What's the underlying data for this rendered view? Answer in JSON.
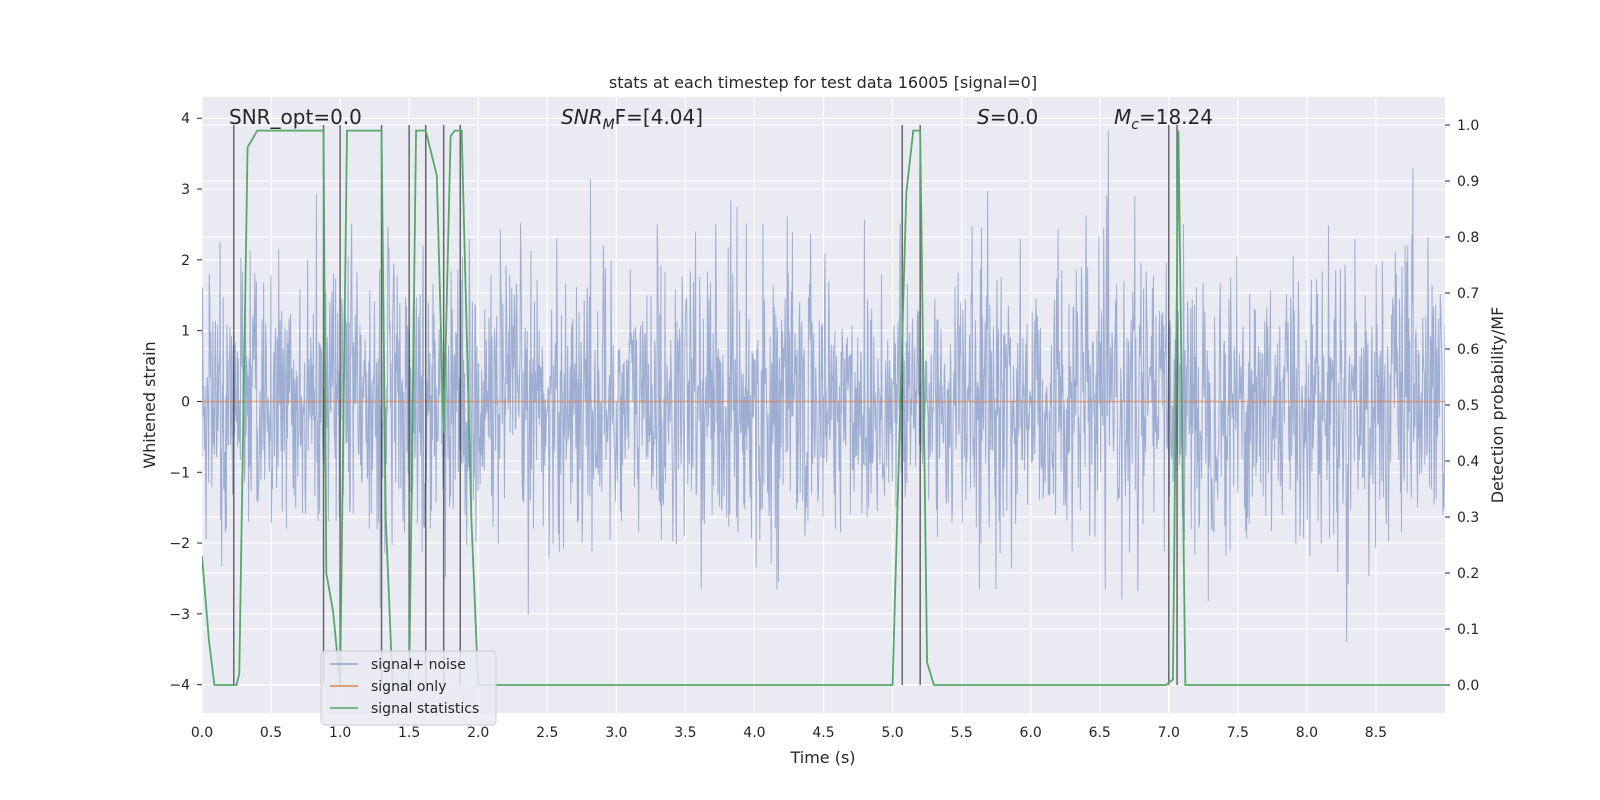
{
  "chart_data": {
    "type": "line",
    "title": "stats at each timestep for test data 16005 [signal=0]",
    "xlabel": "Time (s)",
    "ylabel_left": "Whitened strain",
    "ylabel_right": "Detection probability/MF",
    "xlim": [
      0.0,
      9.0
    ],
    "ylim_left": [
      -4.4,
      4.3
    ],
    "ylim_right": [
      -0.05,
      1.05
    ],
    "xticks": [
      "0.0",
      "0.5",
      "1.0",
      "1.5",
      "2.0",
      "2.5",
      "3.0",
      "3.5",
      "4.0",
      "4.5",
      "5.0",
      "5.5",
      "6.0",
      "6.5",
      "7.0",
      "7.5",
      "8.0",
      "8.5"
    ],
    "yticks_left": [
      "4",
      "3",
      "2",
      "1",
      "0",
      "−1",
      "−2",
      "−3",
      "−4"
    ],
    "yticks_right": [
      "1.0",
      "0.9",
      "0.8",
      "0.7",
      "0.6",
      "0.5",
      "0.4",
      "0.3",
      "0.2",
      "0.1",
      "0.0"
    ],
    "annotations": {
      "snr_opt": "SNR_opt=0.0",
      "snr_mf_base": "SNR",
      "snr_mf_sub": "M",
      "snr_mf_rest": "F=[4.04]",
      "s_label": "S",
      "s_value": "=0.0",
      "mc_base": "M",
      "mc_sub": "c",
      "mc_value": "=18.24"
    },
    "legend": {
      "placement": "lower-left",
      "items": [
        "signal+ noise",
        "signal only",
        "signal statistics"
      ]
    },
    "series": [
      {
        "name": "signal+ noise",
        "color": "#8fa3cc",
        "description": "whitened strain noise, roughly between -3.9 and 3.9",
        "noise_seed": 16005,
        "amplitude_sigma": 1.0
      },
      {
        "name": "signal only",
        "color": "#dd8452",
        "constant": 0.0
      },
      {
        "name": "signal statistics",
        "color": "#55a868",
        "x": [
          0.0,
          0.05,
          0.09,
          0.2,
          0.25,
          0.27,
          0.33,
          0.4,
          0.5,
          0.7,
          0.88,
          0.9,
          0.95,
          1.0,
          1.05,
          1.1,
          1.2,
          1.3,
          1.33,
          1.38,
          1.45,
          1.5,
          1.55,
          1.57,
          1.62,
          1.7,
          1.75,
          1.8,
          1.83,
          1.88,
          1.95,
          2.0,
          2.1,
          2.3,
          2.5,
          3.0,
          4.0,
          5.0,
          5.07,
          5.1,
          5.15,
          5.2,
          5.25,
          5.3,
          5.5,
          6.0,
          6.5,
          6.9,
          6.98,
          7.03,
          7.07,
          7.12,
          7.2,
          7.5,
          8.0,
          8.2,
          8.5,
          9.0
        ],
        "y": [
          0.23,
          0.08,
          0.0,
          0.0,
          0.0,
          0.02,
          0.96,
          0.99,
          0.99,
          0.99,
          0.99,
          0.2,
          0.13,
          0.0,
          0.99,
          0.99,
          0.99,
          0.99,
          0.3,
          0.0,
          0.0,
          0.0,
          0.99,
          0.99,
          0.99,
          0.91,
          0.45,
          0.98,
          0.99,
          0.99,
          0.3,
          0.0,
          0.0,
          0.0,
          0.0,
          0.0,
          0.0,
          0.0,
          0.62,
          0.88,
          0.99,
          0.99,
          0.04,
          0.0,
          0.0,
          0.0,
          0.0,
          0.0,
          0.0,
          0.01,
          0.99,
          0.0,
          0.0,
          0.0,
          0.0,
          0.0,
          0.0,
          0.0
        ]
      }
    ],
    "event_lines_x": [
      0.23,
      0.88,
      1.0,
      1.3,
      1.5,
      1.62,
      1.75,
      1.87,
      5.07,
      5.2,
      7.0,
      7.06
    ],
    "colors": {
      "background": "#eaeaf2",
      "grid": "#ffffff",
      "event_line": "#3a3a3a",
      "text": "#262626"
    }
  }
}
